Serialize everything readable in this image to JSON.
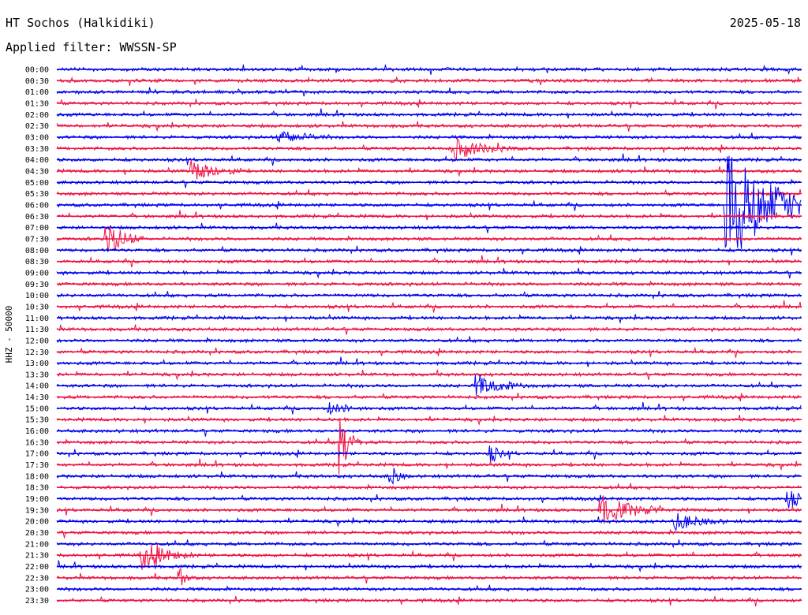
{
  "station": "HT Sochos (Halkidiki)",
  "date": "2025-05-18",
  "filter": "Applied filter: WWSSN-SP",
  "colors": {
    "trace_a": "#0000ee",
    "trace_b": "#ee1144"
  },
  "chart_data": {
    "type": "line",
    "title": "HT Sochos (Halkidiki)",
    "ylabel": "HHZ - 50000",
    "xlabel": "",
    "rows": [
      "00:00",
      "00:30",
      "01:00",
      "01:30",
      "02:00",
      "02:30",
      "03:00",
      "03:30",
      "04:00",
      "04:30",
      "05:00",
      "05:30",
      "06:00",
      "06:30",
      "07:00",
      "07:30",
      "08:00",
      "08:30",
      "09:00",
      "09:30",
      "10:00",
      "10:30",
      "11:00",
      "11:30",
      "12:00",
      "12:30",
      "13:00",
      "13:30",
      "14:00",
      "14:30",
      "15:00",
      "15:30",
      "16:00",
      "16:30",
      "17:00",
      "17:30",
      "18:00",
      "18:30",
      "19:00",
      "19:30",
      "20:00",
      "20:30",
      "21:00",
      "21:30",
      "22:00",
      "22:30",
      "23:00",
      "23:30"
    ],
    "minutes_per_row": 30,
    "grid": false,
    "events": [
      {
        "row": "03:00",
        "minute": 9,
        "amplitude": 0.6,
        "duration": 1.5
      },
      {
        "row": "03:30",
        "minute": 16,
        "amplitude": 0.9,
        "duration": 2
      },
      {
        "row": "04:30",
        "minute": 5.5,
        "amplitude": 0.9,
        "duration": 1.5
      },
      {
        "row": "06:00",
        "minute": 27,
        "amplitude": 5.5,
        "duration": 3
      },
      {
        "row": "07:30",
        "minute": 2,
        "amplitude": 1.8,
        "duration": 1
      },
      {
        "row": "14:00",
        "minute": 17,
        "amplitude": 0.9,
        "duration": 1.5
      },
      {
        "row": "15:00",
        "minute": 11,
        "amplitude": 0.5,
        "duration": 1
      },
      {
        "row": "16:30",
        "minute": 11.5,
        "amplitude": 3,
        "duration": 0.3
      },
      {
        "row": "17:00",
        "minute": 17.5,
        "amplitude": 0.7,
        "duration": 0.5
      },
      {
        "row": "18:00",
        "minute": 13.5,
        "amplitude": 0.9,
        "duration": 0.3
      },
      {
        "row": "19:00",
        "minute": 29.5,
        "amplitude": 0.8,
        "duration": 0.7
      },
      {
        "row": "19:30",
        "minute": 22,
        "amplitude": 1.2,
        "duration": 2
      },
      {
        "row": "20:00",
        "minute": 25,
        "amplitude": 0.7,
        "duration": 1.5
      },
      {
        "row": "21:30",
        "minute": 3.5,
        "amplitude": 1.2,
        "duration": 1.5
      },
      {
        "row": "22:30",
        "minute": 5,
        "amplitude": 0.8,
        "duration": 0.2
      }
    ]
  }
}
